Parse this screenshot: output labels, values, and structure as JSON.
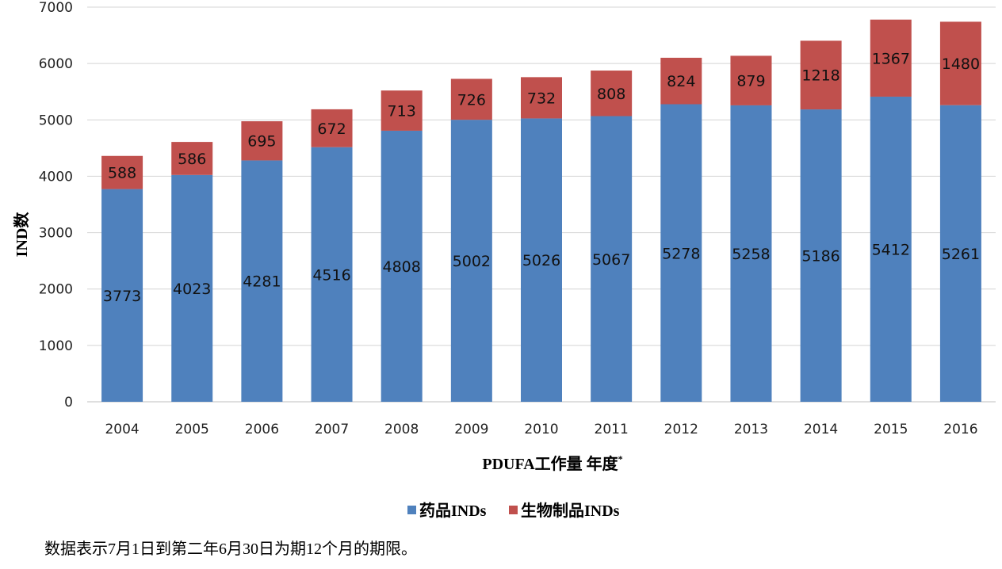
{
  "chart_data": {
    "type": "bar",
    "stacked": true,
    "categories": [
      "2004",
      "2005",
      "2006",
      "2007",
      "2008",
      "2009",
      "2010",
      "2011",
      "2012",
      "2013",
      "2014",
      "2015",
      "2016"
    ],
    "series": [
      {
        "name": "药品INDs",
        "values": [
          3773,
          4023,
          4281,
          4516,
          4808,
          5002,
          5026,
          5067,
          5278,
          5258,
          5186,
          5412,
          5261
        ],
        "color": "#4F81BD"
      },
      {
        "name": "生物制品INDs",
        "values": [
          588,
          586,
          695,
          672,
          713,
          726,
          732,
          808,
          824,
          879,
          1218,
          1367,
          1480
        ],
        "color": "#C0504D"
      }
    ],
    "ylim": [
      0,
      7000
    ],
    "yticks": [
      0,
      1000,
      2000,
      3000,
      4000,
      5000,
      6000,
      7000
    ],
    "ylabel": "IND数",
    "xlabel": "PDUFA工作量  年度",
    "xlabel_mark": "*",
    "grid": true,
    "legend": "bottom"
  },
  "footnote": "数据表示7月1日到第二年6月30日为期12个月的期限。"
}
